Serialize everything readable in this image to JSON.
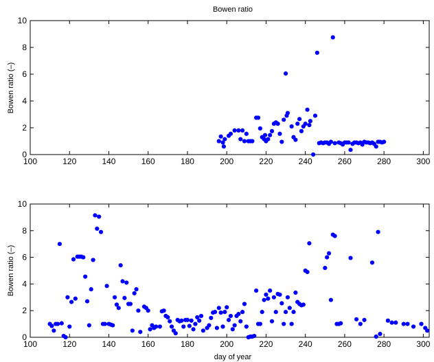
{
  "colors": {
    "points": "#0000ff",
    "axes": "#000000",
    "background": "#ffffff"
  },
  "chart_data": [
    {
      "type": "scatter",
      "title": "Bowen ratio",
      "xlabel": "",
      "ylabel": "Bowen ratio (–)",
      "xlim": [
        100,
        303
      ],
      "ylim": [
        0,
        10
      ],
      "xticks": [
        100,
        120,
        140,
        160,
        180,
        200,
        220,
        240,
        260,
        280,
        300
      ],
      "yticks": [
        0,
        2,
        4,
        6,
        8,
        10
      ],
      "grid": false,
      "points": [
        [
          196,
          1.0
        ],
        [
          197,
          1.35
        ],
        [
          198,
          0.9
        ],
        [
          198.5,
          0.6
        ],
        [
          199,
          1.15
        ],
        [
          201,
          1.4
        ],
        [
          202,
          1.55
        ],
        [
          204,
          1.8
        ],
        [
          206,
          1.8
        ],
        [
          207,
          1.15
        ],
        [
          208,
          1.8
        ],
        [
          209,
          1.0
        ],
        [
          210,
          1.55
        ],
        [
          211,
          1.0
        ],
        [
          212,
          1.0
        ],
        [
          213,
          1.0
        ],
        [
          215,
          2.75
        ],
        [
          216,
          2.75
        ],
        [
          217,
          1.95
        ],
        [
          218,
          1.3
        ],
        [
          219,
          1.15
        ],
        [
          219.5,
          1.45
        ],
        [
          220,
          1.0
        ],
        [
          221,
          1.15
        ],
        [
          222,
          1.45
        ],
        [
          223,
          1.75
        ],
        [
          224,
          2.3
        ],
        [
          225,
          2.4
        ],
        [
          226,
          2.3
        ],
        [
          227,
          1.55
        ],
        [
          228,
          0.95
        ],
        [
          229,
          2.6
        ],
        [
          230,
          6.05
        ],
        [
          230.5,
          2.9
        ],
        [
          231,
          3.1
        ],
        [
          233,
          2.1
        ],
        [
          234,
          1.3
        ],
        [
          235,
          1.1
        ],
        [
          236,
          2.3
        ],
        [
          237,
          2.65
        ],
        [
          238,
          1.75
        ],
        [
          239,
          2.1
        ],
        [
          240,
          2.3
        ],
        [
          241,
          3.35
        ],
        [
          242,
          2.2
        ],
        [
          242.5,
          2.5
        ],
        [
          244,
          0.0
        ],
        [
          245,
          2.9
        ],
        [
          246,
          7.6
        ],
        [
          247,
          0.85
        ],
        [
          248,
          0.9
        ],
        [
          249,
          0.85
        ],
        [
          250,
          0.9
        ],
        [
          251,
          0.9
        ],
        [
          252,
          0.8
        ],
        [
          253,
          0.95
        ],
        [
          254,
          8.75
        ],
        [
          255,
          0.85
        ],
        [
          257,
          0.9
        ],
        [
          258,
          0.85
        ],
        [
          259,
          0.75
        ],
        [
          260,
          0.9
        ],
        [
          261,
          0.9
        ],
        [
          262,
          0.9
        ],
        [
          263,
          0.35
        ],
        [
          264,
          0.8
        ],
        [
          265,
          0.9
        ],
        [
          266,
          0.9
        ],
        [
          267,
          0.85
        ],
        [
          268,
          0.9
        ],
        [
          269,
          0.75
        ],
        [
          270,
          0.95
        ],
        [
          271,
          0.9
        ],
        [
          272,
          0.9
        ],
        [
          273,
          0.85
        ],
        [
          274,
          0.9
        ],
        [
          275,
          0.8
        ],
        [
          276,
          0.6
        ],
        [
          277,
          0.95
        ],
        [
          278,
          0.95
        ],
        [
          279,
          0.9
        ],
        [
          280,
          0.95
        ]
      ]
    },
    {
      "type": "scatter",
      "title": "",
      "xlabel": "day of year",
      "ylabel": "Bowen ratio (–)",
      "xlim": [
        100,
        303
      ],
      "ylim": [
        0,
        10
      ],
      "xticks": [
        100,
        120,
        140,
        160,
        180,
        200,
        220,
        240,
        260,
        280,
        300
      ],
      "yticks": [
        0,
        2,
        4,
        6,
        8,
        10
      ],
      "grid": false,
      "points": [
        [
          110,
          1.0
        ],
        [
          111,
          0.85
        ],
        [
          112,
          0.5
        ],
        [
          113,
          1.0
        ],
        [
          114,
          1.0
        ],
        [
          115,
          7.0
        ],
        [
          116,
          1.05
        ],
        [
          117,
          0.1
        ],
        [
          118,
          0.0
        ],
        [
          119,
          3.0
        ],
        [
          120,
          0.8
        ],
        [
          121,
          2.65
        ],
        [
          122,
          5.85
        ],
        [
          123,
          2.9
        ],
        [
          124,
          6.05
        ],
        [
          125,
          6.05
        ],
        [
          126,
          6.05
        ],
        [
          127,
          6.0
        ],
        [
          128,
          4.55
        ],
        [
          129,
          2.7
        ],
        [
          130,
          0.9
        ],
        [
          131,
          3.6
        ],
        [
          132,
          5.8
        ],
        [
          133,
          9.15
        ],
        [
          134,
          8.15
        ],
        [
          135,
          9.05
        ],
        [
          136,
          7.9
        ],
        [
          137,
          1.0
        ],
        [
          138,
          1.0
        ],
        [
          139,
          3.85
        ],
        [
          140,
          1.0
        ],
        [
          141,
          0.95
        ],
        [
          142,
          0.9
        ],
        [
          143,
          3.0
        ],
        [
          144,
          2.45
        ],
        [
          145,
          2.2
        ],
        [
          146,
          5.4
        ],
        [
          147,
          4.2
        ],
        [
          148,
          2.95
        ],
        [
          149,
          4.1
        ],
        [
          150,
          2.5
        ],
        [
          151,
          2.5
        ],
        [
          152,
          0.5
        ],
        [
          153,
          3.3
        ],
        [
          154,
          3.6
        ],
        [
          155,
          2.0
        ],
        [
          156,
          0.4
        ],
        [
          158,
          2.3
        ],
        [
          159,
          2.2
        ],
        [
          160,
          2.0
        ],
        [
          161,
          0.6
        ],
        [
          162,
          0.9
        ],
        [
          163,
          0.7
        ],
        [
          164,
          0.8
        ],
        [
          166,
          0.8
        ],
        [
          167,
          1.95
        ],
        [
          168,
          2.0
        ],
        [
          169,
          1.6
        ],
        [
          170,
          1.5
        ],
        [
          171,
          1.2
        ],
        [
          172,
          0.8
        ],
        [
          173,
          0.5
        ],
        [
          174,
          0.3
        ],
        [
          175,
          1.3
        ],
        [
          176,
          1.2
        ],
        [
          177,
          1.25
        ],
        [
          178,
          0.8
        ],
        [
          179,
          1.3
        ],
        [
          180,
          1.3
        ],
        [
          181,
          0.85
        ],
        [
          182,
          1.25
        ],
        [
          183,
          0.6
        ],
        [
          184,
          1.0
        ],
        [
          185,
          1.5
        ],
        [
          186,
          1.25
        ],
        [
          187,
          1.6
        ],
        [
          188,
          0.5
        ],
        [
          190,
          0.7
        ],
        [
          191,
          0.9
        ],
        [
          192,
          1.45
        ],
        [
          193,
          1.85
        ],
        [
          194,
          1.9
        ],
        [
          195,
          0.7
        ],
        [
          196,
          2.2
        ],
        [
          197,
          1.85
        ],
        [
          198,
          0.8
        ],
        [
          199,
          1.9
        ],
        [
          200,
          2.25
        ],
        [
          201,
          1.3
        ],
        [
          202,
          1.6
        ],
        [
          203,
          0.6
        ],
        [
          204,
          0.9
        ],
        [
          205,
          1.6
        ],
        [
          206,
          1.75
        ],
        [
          207,
          1.2
        ],
        [
          208,
          1.9
        ],
        [
          209,
          2.5
        ],
        [
          210,
          0.8
        ],
        [
          211,
          0.0
        ],
        [
          212,
          0.05
        ],
        [
          213,
          0.05
        ],
        [
          214,
          0.1
        ],
        [
          215,
          3.5
        ],
        [
          216,
          1.0
        ],
        [
          217,
          1.0
        ],
        [
          218,
          1.9
        ],
        [
          219,
          2.8
        ],
        [
          220,
          3.2
        ],
        [
          221,
          2.9
        ],
        [
          222,
          3.5
        ],
        [
          223,
          1.2
        ],
        [
          224,
          3.0
        ],
        [
          225,
          1.9
        ],
        [
          226,
          3.25
        ],
        [
          227,
          3.2
        ],
        [
          228,
          2.55
        ],
        [
          229,
          1.0
        ],
        [
          230,
          1.9
        ],
        [
          231,
          3.0
        ],
        [
          232,
          2.2
        ],
        [
          233,
          1.0
        ],
        [
          234,
          1.9
        ],
        [
          235,
          3.35
        ],
        [
          236,
          2.65
        ],
        [
          237,
          2.5
        ],
        [
          238,
          2.4
        ],
        [
          239,
          2.45
        ],
        [
          240,
          5.0
        ],
        [
          241,
          4.9
        ],
        [
          242,
          7.05
        ],
        [
          250,
          5.2
        ],
        [
          251,
          6.0
        ],
        [
          252,
          6.3
        ],
        [
          253,
          2.8
        ],
        [
          254,
          7.7
        ],
        [
          255,
          7.6
        ],
        [
          256,
          1.0
        ],
        [
          257,
          1.0
        ],
        [
          258,
          1.05
        ],
        [
          263,
          5.95
        ],
        [
          266,
          1.35
        ],
        [
          268,
          1.0
        ],
        [
          270,
          1.3
        ],
        [
          274,
          5.6
        ],
        [
          276,
          0.05
        ],
        [
          277,
          7.9
        ],
        [
          278,
          0.25
        ],
        [
          282,
          1.25
        ],
        [
          284,
          1.1
        ],
        [
          286,
          1.1
        ],
        [
          290,
          1.0
        ],
        [
          292,
          1.0
        ],
        [
          295,
          0.8
        ],
        [
          299,
          1.0
        ],
        [
          301,
          0.7
        ],
        [
          302,
          0.5
        ]
      ]
    }
  ]
}
